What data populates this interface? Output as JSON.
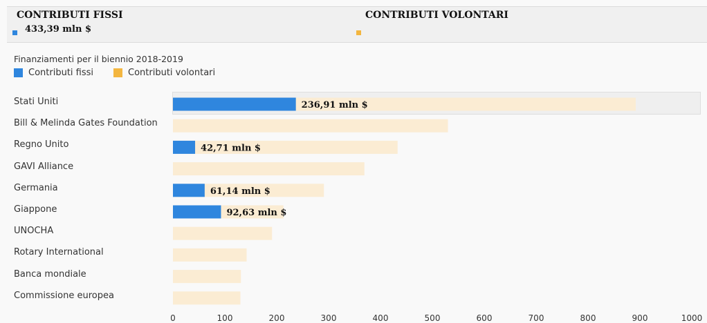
{
  "header": {
    "left_title": "CONTRIBUTI FISSI",
    "left_value": "433,39 mln $",
    "right_title": "CONTRIBUTI VOLONTARI"
  },
  "colors": {
    "fixed": "#2f86de",
    "voluntary": "#f3b640",
    "voluntary_bar": "#fbecd3"
  },
  "chart_data": {
    "type": "bar",
    "orientation": "horizontal",
    "title": "Finanziamenti per il biennio 2018-2019",
    "categories": [
      "Stati Uniti",
      "Bill & Melinda Gates Foundation",
      "Regno Unito",
      "GAVI Alliance",
      "Germania",
      "Giappone",
      "UNOCHA",
      "Rotary International",
      "Banca mondiale",
      "Commissione europea"
    ],
    "series": [
      {
        "name": "Contributi fissi",
        "values": [
          236.91,
          null,
          42.71,
          null,
          61.14,
          92.63,
          null,
          null,
          null,
          null
        ],
        "labels": [
          "236,91 mln $",
          "",
          "42,71 mln $",
          "",
          "61,14 mln $",
          "92,63 mln $",
          "",
          "",
          "",
          ""
        ]
      },
      {
        "name": "Contributi volontari",
        "values": [
          892,
          530,
          433,
          369,
          291,
          213,
          191,
          142,
          131,
          130
        ]
      }
    ],
    "xlim": [
      0,
      1000
    ],
    "xticks": [
      "0",
      "100",
      "200",
      "300",
      "400",
      "500",
      "600",
      "700",
      "800",
      "900",
      "1000"
    ],
    "legend": "top-left",
    "grid": false
  }
}
